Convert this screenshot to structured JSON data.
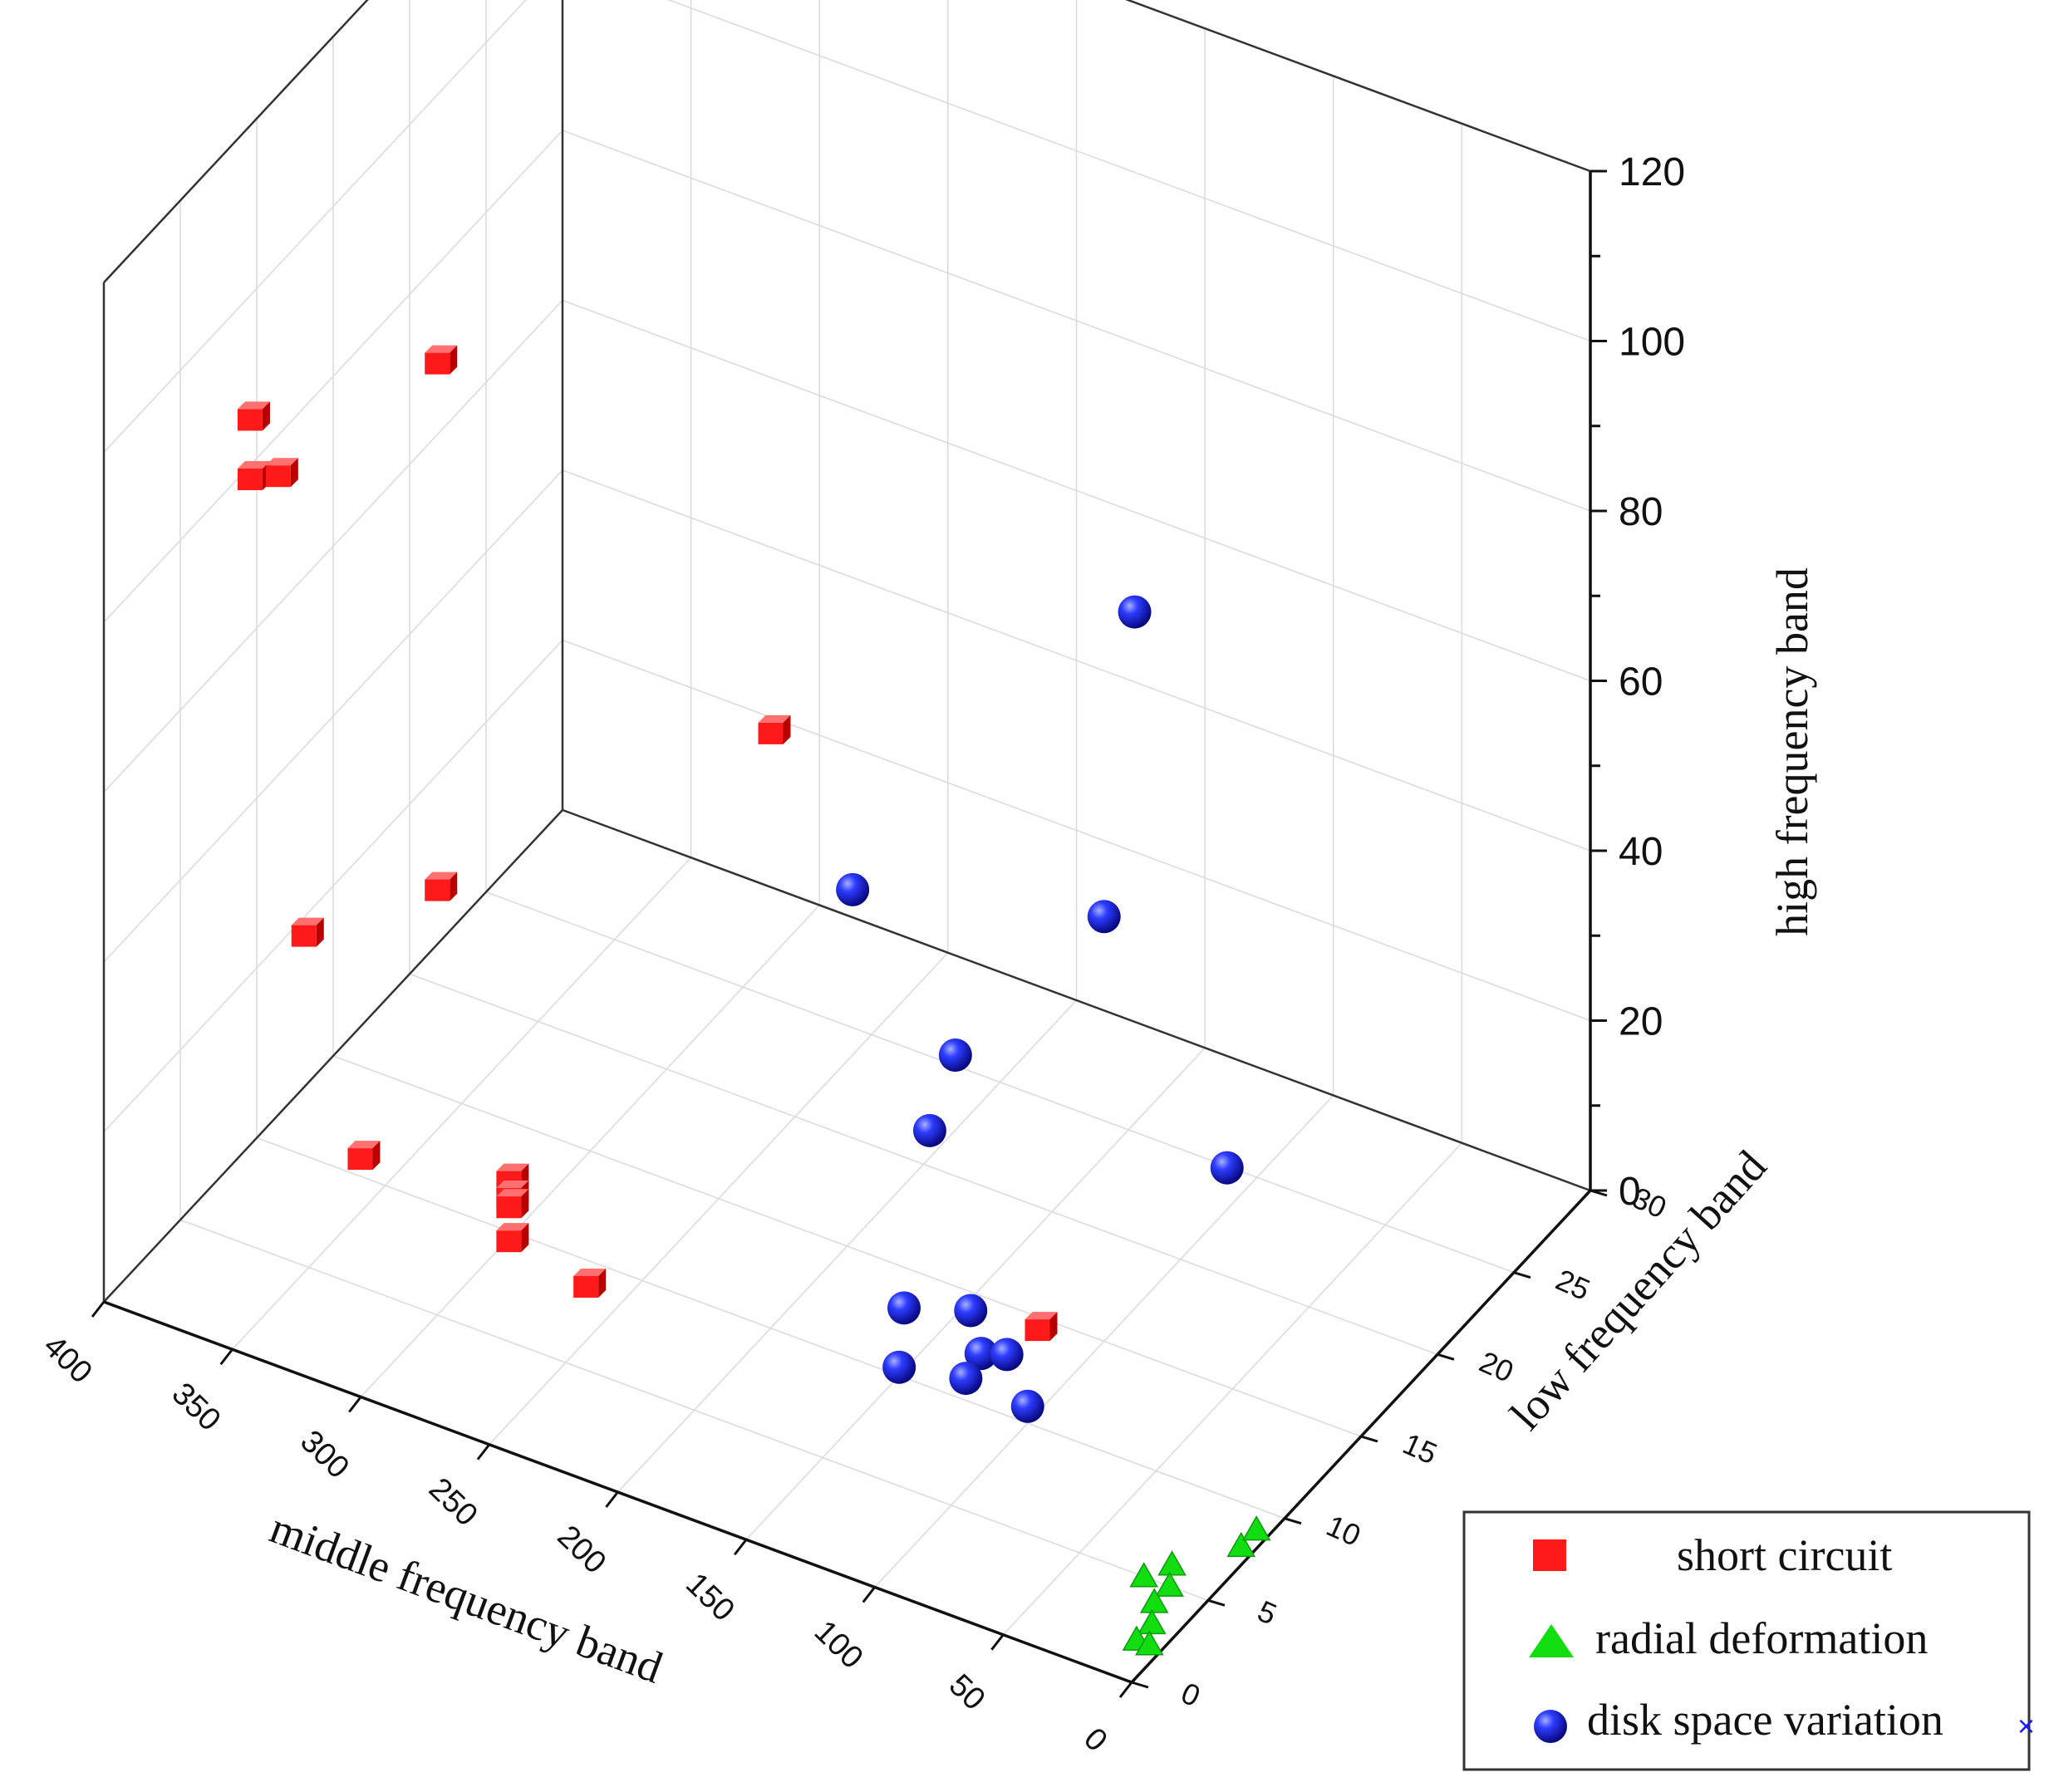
{
  "chart_data": {
    "type": "scatter3d",
    "title": "",
    "axes": {
      "x": {
        "label": "middle frequency band",
        "range": [
          0,
          400
        ],
        "ticks": [
          0,
          50,
          100,
          150,
          200,
          250,
          300,
          350,
          400
        ]
      },
      "y": {
        "label": "low frequency band",
        "range": [
          0,
          30
        ],
        "ticks": [
          0,
          5,
          10,
          15,
          20,
          25,
          30
        ]
      },
      "z": {
        "label": "high frequency band",
        "range": [
          0,
          120
        ],
        "ticks": [
          0,
          20,
          40,
          60,
          80,
          100,
          120
        ]
      }
    },
    "grid": true,
    "legend_position": "bottom-right",
    "series": [
      {
        "name": "short circuit",
        "marker": "square",
        "color": "#ff1a1a",
        "points": [
          [
            355,
            2,
            105
          ],
          [
            355,
            2,
            98
          ],
          [
            350,
            3,
            97
          ],
          [
            300,
            5,
            112
          ],
          [
            200,
            10,
            70
          ],
          [
            340,
            3,
            44
          ],
          [
            300,
            5,
            50
          ],
          [
            330,
            5,
            15
          ],
          [
            290,
            8,
            11
          ],
          [
            290,
            8,
            9
          ],
          [
            290,
            8,
            8
          ],
          [
            290,
            8,
            4
          ],
          [
            260,
            8,
            2
          ],
          [
            120,
            14,
            1
          ]
        ]
      },
      {
        "name": "radial deformation",
        "marker": "triangle",
        "color": "#11dd11",
        "points": [
          [
            20,
            6,
            0
          ],
          [
            15,
            5,
            0
          ],
          [
            15,
            4,
            0
          ],
          [
            10,
            3,
            0
          ],
          [
            10,
            2,
            0
          ],
          [
            25,
            5,
            0
          ],
          [
            5,
            2,
            0
          ],
          [
            5,
            8,
            0
          ],
          [
            5,
            9,
            0
          ]
        ]
      },
      {
        "name": "disk space variation",
        "marker": "sphere",
        "color": "#1a1aff",
        "points": [
          [
            100,
            17,
            82
          ],
          [
            100,
            15,
            50
          ],
          [
            180,
            12,
            50
          ],
          [
            140,
            12,
            35
          ],
          [
            150,
            12,
            25
          ],
          [
            70,
            18,
            18
          ],
          [
            160,
            12,
            3
          ],
          [
            140,
            13,
            3
          ],
          [
            130,
            12,
            1
          ],
          [
            120,
            12,
            2
          ],
          [
            100,
            10,
            2
          ],
          [
            130,
            11,
            0
          ],
          [
            150,
            10,
            1
          ]
        ]
      }
    ]
  },
  "legend": {
    "items": [
      {
        "label": "short circuit",
        "icon": "square-icon",
        "color": "#ff1a1a"
      },
      {
        "label": "radial deformation",
        "icon": "triangle-icon",
        "color": "#11dd11"
      },
      {
        "label": "disk space variation",
        "icon": "sphere-icon",
        "color": "#1a1aff"
      }
    ],
    "mark": "×"
  }
}
